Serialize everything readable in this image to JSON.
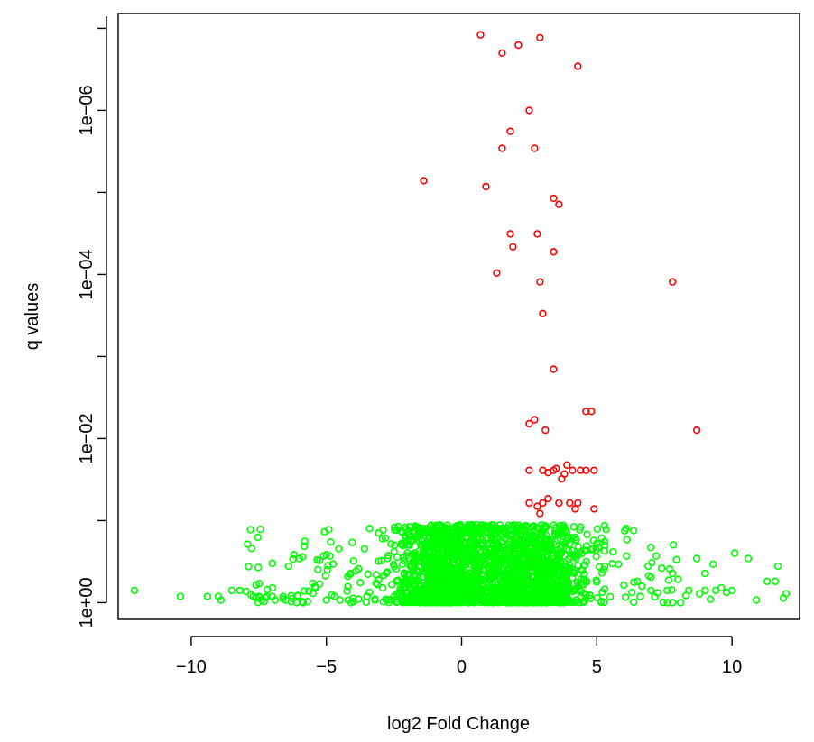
{
  "chart_data": {
    "type": "scatter",
    "title": "",
    "xlabel": "log2 Fold Change",
    "ylabel": "q values",
    "x_ticks": [
      -10,
      -5,
      0,
      5,
      10
    ],
    "x_tick_labels": [
      "−10",
      "−5",
      "0",
      "5",
      "10"
    ],
    "xlim": [
      -12.7,
      12.5
    ],
    "y_scale": "log",
    "y_axis_reversed": true,
    "y_ticks": [
      1,
      0.01,
      0.0001,
      1e-06
    ],
    "y_tick_labels": [
      "1e+00",
      "1e−02",
      "1e−04",
      "1e−06"
    ],
    "ylim_q": [
      1.6,
      6.6e-08
    ],
    "grid": false,
    "colors": {
      "significant": "#ff0000",
      "not_significant": "#00ff00"
    },
    "series": [
      {
        "color_key": "significant",
        "points": [
          [
            0.7,
            1.2e-07
          ],
          [
            2.9,
            1.3e-07
          ],
          [
            2.1,
            1.6e-07
          ],
          [
            1.5,
            2e-07
          ],
          [
            4.3,
            2.9e-07
          ],
          [
            2.5,
            1e-06
          ],
          [
            1.8,
            1.8e-06
          ],
          [
            1.5,
            2.9e-06
          ],
          [
            2.7,
            2.9e-06
          ],
          [
            -1.4,
            7.2e-06
          ],
          [
            0.9,
            8.5e-06
          ],
          [
            3.4,
            1.18e-05
          ],
          [
            3.6,
            1.4e-05
          ],
          [
            1.8,
            3.2e-05
          ],
          [
            2.8,
            3.2e-05
          ],
          [
            1.9,
            4.6e-05
          ],
          [
            3.4,
            5.3e-05
          ],
          [
            1.3,
            9.6e-05
          ],
          [
            2.9,
            0.000123
          ],
          [
            7.8,
            0.000123
          ],
          [
            3.0,
            0.0003
          ],
          [
            3.4,
            0.00143
          ],
          [
            4.6,
            0.00466
          ],
          [
            4.8,
            0.00466
          ],
          [
            2.7,
            0.0059
          ],
          [
            2.5,
            0.0066
          ],
          [
            3.1,
            0.0079
          ],
          [
            8.7,
            0.0079
          ],
          [
            2.5,
            0.0244
          ],
          [
            3.0,
            0.0244
          ],
          [
            3.2,
            0.026
          ],
          [
            3.4,
            0.0244
          ],
          [
            3.5,
            0.0232
          ],
          [
            3.7,
            0.031
          ],
          [
            3.8,
            0.027
          ],
          [
            3.9,
            0.021
          ],
          [
            4.1,
            0.0244
          ],
          [
            4.4,
            0.0244
          ],
          [
            4.6,
            0.0244
          ],
          [
            4.9,
            0.0244
          ],
          [
            2.5,
            0.061
          ],
          [
            2.8,
            0.067
          ],
          [
            3.0,
            0.061
          ],
          [
            3.2,
            0.054
          ],
          [
            3.6,
            0.061
          ],
          [
            4.0,
            0.061
          ],
          [
            4.3,
            0.061
          ],
          [
            4.2,
            0.072
          ],
          [
            4.9,
            0.072
          ],
          [
            2.9,
            0.082
          ]
        ]
      },
      {
        "color_key": "not_significant",
        "points": [
          [
            -12.1,
            0.71
          ],
          [
            -10.4,
            0.84
          ],
          [
            -9.4,
            0.84
          ],
          [
            -9.0,
            0.84
          ],
          [
            -8.9,
            0.93
          ],
          [
            -8.5,
            0.71
          ],
          [
            -8.2,
            0.71
          ],
          [
            -7.7,
            0.84
          ],
          [
            -7.5,
            0.84
          ],
          [
            -7.4,
            0.93
          ],
          [
            -7.2,
            0.84
          ],
          [
            -7.0,
            0.84
          ],
          [
            -6.9,
            0.93
          ],
          [
            -6.6,
            0.84
          ],
          [
            -6.5,
            0.93
          ],
          [
            -6.3,
            0.97
          ],
          [
            -6.1,
            1.0
          ],
          [
            -5.9,
            0.97
          ],
          [
            -5.7,
            0.97
          ],
          [
            -6.4,
            0.36
          ],
          [
            -6.2,
            0.26
          ],
          [
            -6.0,
            0.29
          ],
          [
            -5.5,
            0.58
          ],
          [
            -5.4,
            0.66
          ],
          [
            -5.5,
            0.77
          ],
          [
            -5.1,
            0.27
          ],
          [
            -5.0,
            0.26
          ],
          [
            -5.0,
            0.93
          ],
          [
            -4.7,
            0.84
          ],
          [
            -4.5,
            0.93
          ],
          [
            -4.2,
            0.93
          ],
          [
            -4.0,
            0.97
          ],
          [
            -4.1,
            0.44
          ],
          [
            -3.9,
            0.41
          ],
          [
            -4.0,
            0.31
          ],
          [
            -3.5,
            0.84
          ],
          [
            -3.2,
            0.93
          ],
          [
            -2.8,
            0.91
          ],
          [
            -2.5,
            0.84
          ],
          [
            -2.2,
            0.95
          ],
          [
            -2.9,
            0.13
          ],
          [
            -1.2,
            0.16
          ],
          [
            -1.0,
            0.53
          ],
          [
            -0.5,
            0.75
          ],
          [
            0.2,
            0.86
          ],
          [
            0.5,
            0.65
          ],
          [
            0.9,
            0.93
          ],
          [
            1.4,
            0.31
          ],
          [
            1.8,
            0.21
          ],
          [
            2.2,
            0.66
          ],
          [
            2.6,
            0.15
          ],
          [
            3.1,
            0.17
          ],
          [
            3.6,
            0.43
          ],
          [
            3.7,
            0.14
          ],
          [
            4.2,
            0.16
          ],
          [
            4.4,
            0.12
          ],
          [
            4.6,
            0.89
          ],
          [
            5.0,
            0.19
          ],
          [
            5.3,
            0.36
          ],
          [
            5.8,
            0.34
          ],
          [
            6.1,
            0.27
          ],
          [
            6.3,
            0.75
          ],
          [
            6.6,
            0.84
          ],
          [
            6.9,
            0.36
          ],
          [
            7.0,
            0.49
          ],
          [
            7.2,
            0.27
          ],
          [
            7.4,
            0.38
          ],
          [
            7.6,
            0.71
          ],
          [
            7.8,
            0.44
          ],
          [
            8.0,
            0.52
          ],
          [
            8.3,
            0.82
          ],
          [
            7.8,
            1.0
          ],
          [
            8.1,
            1.0
          ],
          [
            8.8,
            0.78
          ],
          [
            9.0,
            0.71
          ],
          [
            9.2,
            0.91
          ],
          [
            9.4,
            0.71
          ],
          [
            9.6,
            0.66
          ],
          [
            9.8,
            0.75
          ],
          [
            10.0,
            0.71
          ],
          [
            9.3,
            0.34
          ],
          [
            9.0,
            0.44
          ],
          [
            10.1,
            0.25
          ],
          [
            10.6,
            0.29
          ],
          [
            11.3,
            0.55
          ],
          [
            11.6,
            0.55
          ],
          [
            11.7,
            0.36
          ],
          [
            11.9,
            0.88
          ],
          [
            12.0,
            0.78
          ],
          [
            10.9,
            0.93
          ],
          [
            8.7,
            0.29
          ],
          [
            8.4,
            0.71
          ],
          [
            7.0,
            0.71
          ],
          [
            6.5,
            0.55
          ],
          [
            6.0,
            0.61
          ]
        ]
      }
    ]
  }
}
